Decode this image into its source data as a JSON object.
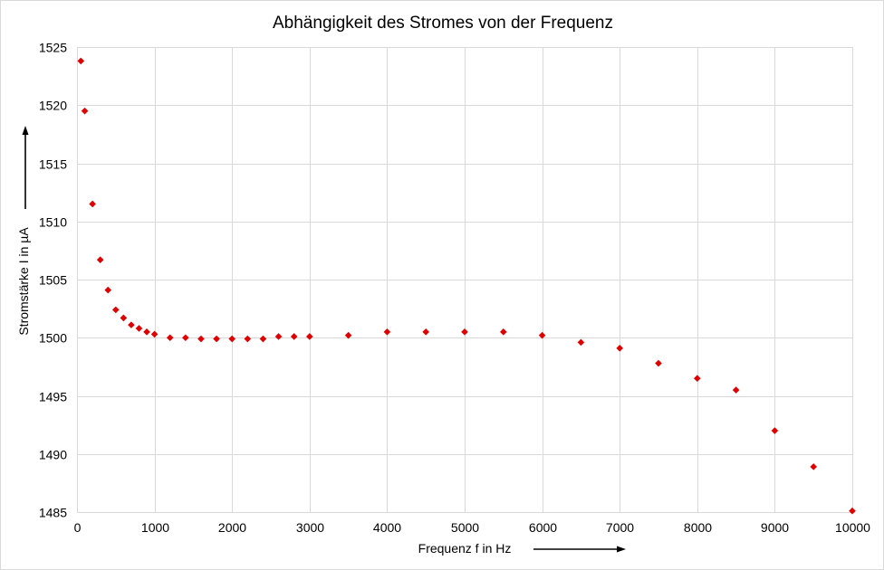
{
  "chart_data": {
    "type": "scatter",
    "title": "Abhängigkeit  des Stromes von der Frequenz",
    "xlabel": "Frequenz  f in Hz",
    "ylabel": "Stromstärke I in µA",
    "xlim": [
      0,
      10000
    ],
    "ylim": [
      1485,
      1525
    ],
    "xticks": [
      0,
      1000,
      2000,
      3000,
      4000,
      5000,
      6000,
      7000,
      8000,
      9000,
      10000
    ],
    "yticks": [
      1485,
      1490,
      1495,
      1500,
      1505,
      1510,
      1515,
      1520,
      1525
    ],
    "grid": true,
    "marker": "diamond",
    "marker_color": "#e00000",
    "series": [
      {
        "x": [
          50,
          100,
          200,
          300,
          400,
          500,
          600,
          700,
          800,
          900,
          1000,
          1200,
          1400,
          1600,
          1800,
          2000,
          2200,
          2400,
          2600,
          2800,
          3000,
          3500,
          4000,
          4500,
          5000,
          5500,
          6000,
          6500,
          7000,
          7500,
          8000,
          8500,
          9000,
          9500,
          10000
        ],
        "y": [
          1523.8,
          1519.5,
          1511.5,
          1506.7,
          1504.1,
          1502.4,
          1501.7,
          1501.1,
          1500.8,
          1500.5,
          1500.3,
          1500.0,
          1500.0,
          1499.9,
          1499.9,
          1499.9,
          1499.9,
          1499.9,
          1500.1,
          1500.1,
          1500.1,
          1500.2,
          1500.5,
          1500.5,
          1500.5,
          1500.5,
          1500.2,
          1499.6,
          1499.1,
          1497.8,
          1496.5,
          1495.5,
          1492.0,
          1488.9,
          1485.1
        ]
      }
    ]
  }
}
